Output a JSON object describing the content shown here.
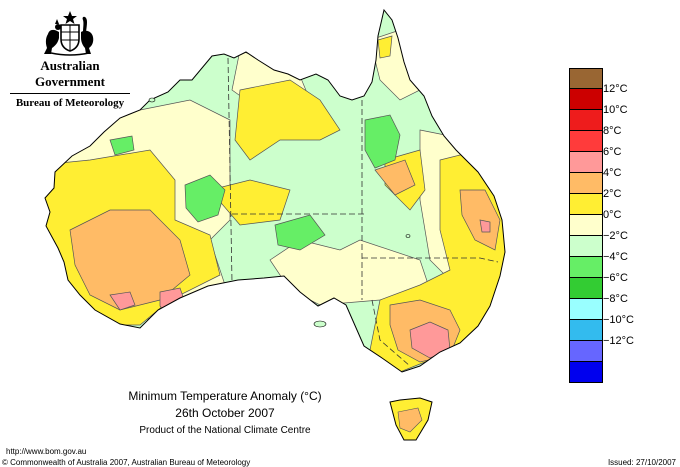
{
  "header": {
    "government": "Australian Government",
    "bureau": "Bureau of Meteorology",
    "crest_icon": "coat-of-arms-icon"
  },
  "map": {
    "title": "Minimum Temperature Anomaly (°C)",
    "date": "26th October 2007",
    "product": "Product of the National Climate Centre"
  },
  "legend": {
    "items": [
      {
        "label": "",
        "color": "#996633"
      },
      {
        "label": "12°C",
        "color": "#cc0000"
      },
      {
        "label": "10°C",
        "color": "#ee1c1c"
      },
      {
        "label": "8°C",
        "color": "#ff3b3b"
      },
      {
        "label": "6°C",
        "color": "#ff9999"
      },
      {
        "label": "4°C",
        "color": "#ffbb66"
      },
      {
        "label": "2°C",
        "color": "#ffee33"
      },
      {
        "label": "0°C",
        "color": "#ffffcc"
      },
      {
        "label": "−2°C",
        "color": "#ccffcc"
      },
      {
        "label": "−4°C",
        "color": "#66ee66"
      },
      {
        "label": "−6°C",
        "color": "#33cc33"
      },
      {
        "label": "−8°C",
        "color": "#99ffff"
      },
      {
        "label": "−10°C",
        "color": "#33bbee"
      },
      {
        "label": "−12°C",
        "color": "#6666ff"
      },
      {
        "label": "",
        "color": "#0000ee"
      }
    ]
  },
  "footer": {
    "url": "http://www.bom.gov.au",
    "copyright": "© Commonwealth of Australia 2007, Australian Bureau of Meteorology",
    "issued": "Issued: 27/10/2007"
  }
}
